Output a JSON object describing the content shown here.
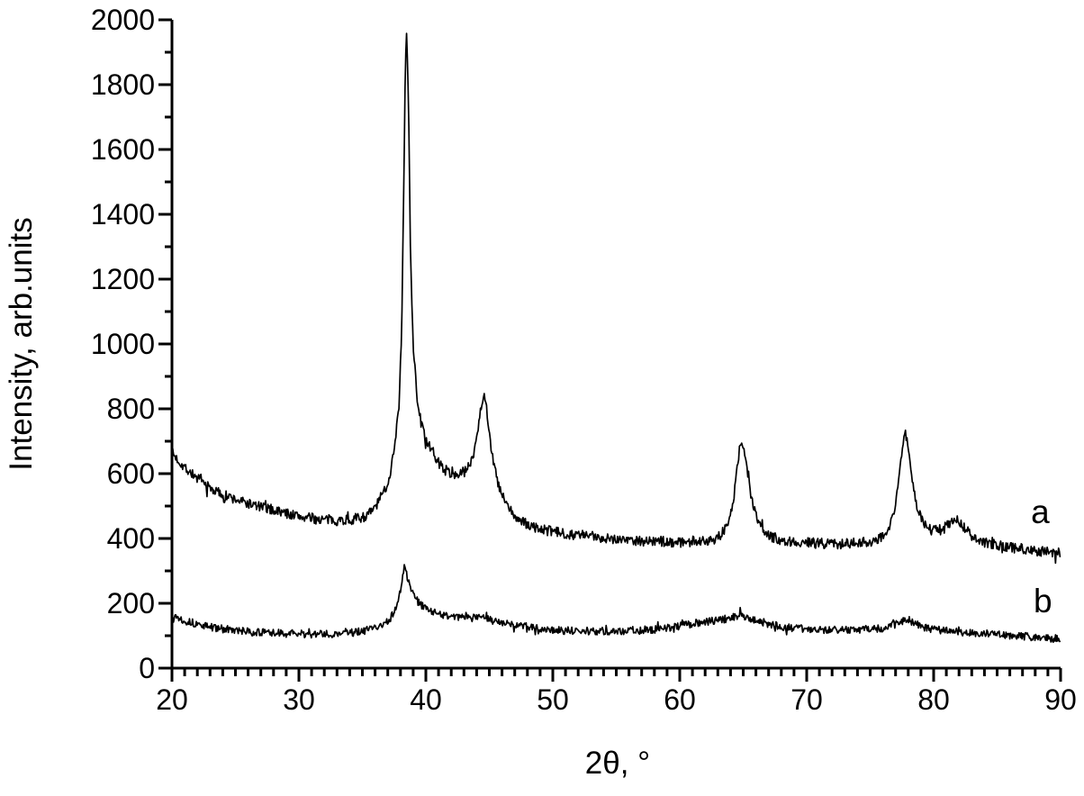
{
  "chart_data": {
    "type": "line",
    "title": "",
    "xlabel": "2θ, °",
    "ylabel": "Intensity, arb.units",
    "xlim": [
      20,
      90
    ],
    "ylim": [
      0,
      2000
    ],
    "x_major_ticks": [
      20,
      30,
      40,
      50,
      60,
      70,
      80,
      90
    ],
    "x_minor_step": 1,
    "y_major_ticks": [
      0,
      200,
      400,
      600,
      800,
      1000,
      1200,
      1400,
      1600,
      1800,
      2000
    ],
    "y_minor_step": 100,
    "grid": false,
    "legend_position": "none",
    "background_color": "#ffffff",
    "axis_color": "#000000",
    "line_color": "#000000",
    "peak_positions_2theta": [
      38.4,
      44.6,
      64.8,
      77.8,
      81.8
    ],
    "series": [
      {
        "name": "a",
        "label": "a",
        "label_anchor": {
          "x": 88.4,
          "y": 480
        },
        "noise": 16,
        "seed": 7,
        "points": [
          [
            20,
            665
          ],
          [
            20.5,
            640
          ],
          [
            21,
            620
          ],
          [
            22,
            585
          ],
          [
            23,
            555
          ],
          [
            24,
            535
          ],
          [
            25,
            520
          ],
          [
            26,
            508
          ],
          [
            27,
            497
          ],
          [
            28,
            488
          ],
          [
            29,
            478
          ],
          [
            30,
            468
          ],
          [
            31,
            462
          ],
          [
            32,
            458
          ],
          [
            33,
            456
          ],
          [
            34,
            458
          ],
          [
            35,
            465
          ],
          [
            35.5,
            475
          ],
          [
            36,
            495
          ],
          [
            36.5,
            530
          ],
          [
            37,
            570
          ],
          [
            37.3,
            625
          ],
          [
            37.6,
            710
          ],
          [
            37.9,
            820
          ],
          [
            38.1,
            1050
          ],
          [
            38.25,
            1450
          ],
          [
            38.4,
            1900
          ],
          [
            38.5,
            1960
          ],
          [
            38.65,
            1700
          ],
          [
            38.8,
            1250
          ],
          [
            39,
            1000
          ],
          [
            39.3,
            840
          ],
          [
            39.6,
            760
          ],
          [
            40,
            705
          ],
          [
            40.5,
            665
          ],
          [
            41,
            635
          ],
          [
            41.5,
            612
          ],
          [
            42,
            600
          ],
          [
            42.5,
            597
          ],
          [
            43,
            605
          ],
          [
            43.4,
            622
          ],
          [
            43.8,
            670
          ],
          [
            44.1,
            740
          ],
          [
            44.4,
            820
          ],
          [
            44.6,
            848
          ],
          [
            44.85,
            780
          ],
          [
            45.1,
            695
          ],
          [
            45.4,
            618
          ],
          [
            45.8,
            552
          ],
          [
            46.3,
            508
          ],
          [
            46.8,
            478
          ],
          [
            47.3,
            458
          ],
          [
            48,
            442
          ],
          [
            49,
            429
          ],
          [
            50,
            421
          ],
          [
            51,
            415
          ],
          [
            52,
            411
          ],
          [
            53,
            407
          ],
          [
            54,
            403
          ],
          [
            55,
            399
          ],
          [
            56,
            396
          ],
          [
            57,
            393
          ],
          [
            58,
            391
          ],
          [
            59,
            390
          ],
          [
            60,
            389
          ],
          [
            61,
            390
          ],
          [
            62,
            393
          ],
          [
            62.8,
            400
          ],
          [
            63.3,
            414
          ],
          [
            63.8,
            444
          ],
          [
            64.2,
            508
          ],
          [
            64.5,
            608
          ],
          [
            64.8,
            705
          ],
          [
            65.1,
            672
          ],
          [
            65.4,
            580
          ],
          [
            65.8,
            497
          ],
          [
            66.2,
            448
          ],
          [
            66.7,
            419
          ],
          [
            67.3,
            404
          ],
          [
            68,
            395
          ],
          [
            69,
            390
          ],
          [
            70,
            387
          ],
          [
            71,
            385
          ],
          [
            72,
            384
          ],
          [
            73,
            384
          ],
          [
            74,
            386
          ],
          [
            75,
            391
          ],
          [
            75.7,
            401
          ],
          [
            76.2,
            419
          ],
          [
            76.7,
            454
          ],
          [
            77.1,
            528
          ],
          [
            77.4,
            638
          ],
          [
            77.7,
            737
          ],
          [
            77.95,
            697
          ],
          [
            78.25,
            598
          ],
          [
            78.6,
            508
          ],
          [
            79,
            464
          ],
          [
            79.4,
            439
          ],
          [
            79.8,
            427
          ],
          [
            80.3,
            424
          ],
          [
            80.8,
            431
          ],
          [
            81.3,
            448
          ],
          [
            81.7,
            464
          ],
          [
            82,
            454
          ],
          [
            82.4,
            434
          ],
          [
            82.9,
            411
          ],
          [
            83.4,
            397
          ],
          [
            84,
            387
          ],
          [
            85,
            379
          ],
          [
            86,
            373
          ],
          [
            87,
            368
          ],
          [
            88,
            363
          ],
          [
            89,
            359
          ],
          [
            90,
            356
          ]
        ]
      },
      {
        "name": "b",
        "label": "b",
        "label_anchor": {
          "x": 88.6,
          "y": 205
        },
        "noise": 12,
        "seed": 13,
        "points": [
          [
            20,
            168
          ],
          [
            20.5,
            156
          ],
          [
            21,
            147
          ],
          [
            22,
            135
          ],
          [
            23,
            127
          ],
          [
            24,
            121
          ],
          [
            25,
            116
          ],
          [
            26,
            112
          ],
          [
            27,
            110
          ],
          [
            28,
            108
          ],
          [
            29,
            107
          ],
          [
            30,
            106
          ],
          [
            31,
            105
          ],
          [
            32,
            105
          ],
          [
            33,
            106
          ],
          [
            34,
            109
          ],
          [
            35,
            114
          ],
          [
            36,
            124
          ],
          [
            36.7,
            137
          ],
          [
            37.2,
            154
          ],
          [
            37.7,
            190
          ],
          [
            38,
            240
          ],
          [
            38.15,
            272
          ],
          [
            38.3,
            310
          ],
          [
            38.45,
            295
          ],
          [
            38.7,
            258
          ],
          [
            39,
            228
          ],
          [
            39.4,
            203
          ],
          [
            39.8,
            188
          ],
          [
            40.3,
            176
          ],
          [
            41,
            168
          ],
          [
            42,
            161
          ],
          [
            43,
            157
          ],
          [
            44,
            154
          ],
          [
            44.5,
            156
          ],
          [
            45,
            150
          ],
          [
            46,
            141
          ],
          [
            47,
            133
          ],
          [
            48,
            127
          ],
          [
            49,
            122
          ],
          [
            50,
            118
          ],
          [
            51,
            116
          ],
          [
            52,
            115
          ],
          [
            53,
            114
          ],
          [
            54,
            114
          ],
          [
            55,
            115
          ],
          [
            56,
            116
          ],
          [
            57,
            117
          ],
          [
            58,
            119
          ],
          [
            59,
            124
          ],
          [
            60,
            130
          ],
          [
            61,
            137
          ],
          [
            62,
            143
          ],
          [
            63,
            148
          ],
          [
            63.8,
            153
          ],
          [
            64.4,
            159
          ],
          [
            64.8,
            164
          ],
          [
            65.3,
            157
          ],
          [
            66,
            148
          ],
          [
            66.6,
            141
          ],
          [
            67.2,
            135
          ],
          [
            68,
            129
          ],
          [
            69,
            124
          ],
          [
            70,
            121
          ],
          [
            71,
            119
          ],
          [
            72,
            117
          ],
          [
            73,
            117
          ],
          [
            74,
            118
          ],
          [
            75,
            120
          ],
          [
            76,
            124
          ],
          [
            76.7,
            130
          ],
          [
            77.3,
            140
          ],
          [
            77.8,
            150
          ],
          [
            78.3,
            140
          ],
          [
            78.9,
            130
          ],
          [
            79.5,
            123
          ],
          [
            80,
            119
          ],
          [
            81,
            115
          ],
          [
            82,
            112
          ],
          [
            83,
            109
          ],
          [
            84,
            106
          ],
          [
            85,
            103
          ],
          [
            86,
            101
          ],
          [
            87,
            99
          ],
          [
            88,
            96
          ],
          [
            89,
            93
          ],
          [
            90,
            90
          ]
        ]
      }
    ]
  }
}
